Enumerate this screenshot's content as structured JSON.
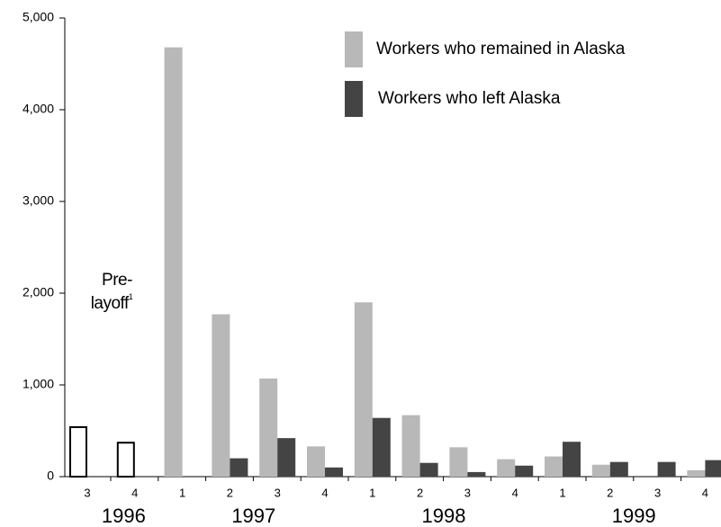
{
  "chart_data": {
    "type": "bar",
    "categories": [
      "3",
      "4",
      "1",
      "2",
      "3",
      "4",
      "1",
      "2",
      "3",
      "4",
      "1",
      "2",
      "3",
      "4"
    ],
    "group_labels": [
      "1996",
      "1997",
      "1998",
      "1999"
    ],
    "group_sizes": [
      2,
      4,
      4,
      4
    ],
    "series": [
      {
        "name": "Workers who remained in Alaska",
        "color": "#b8b8b8",
        "values": [
          null,
          null,
          4680,
          1770,
          1070,
          330,
          1900,
          670,
          320,
          190,
          220,
          130,
          null,
          70
        ]
      },
      {
        "name": "Workers who left Alaska",
        "color": "#444444",
        "values": [
          null,
          null,
          null,
          200,
          420,
          100,
          640,
          150,
          50,
          120,
          380,
          160,
          160,
          180
        ]
      },
      {
        "name": "Pre-layoff",
        "color": "#ffffff",
        "footnote": "1",
        "values": [
          540,
          370,
          null,
          null,
          null,
          null,
          null,
          null,
          null,
          null,
          null,
          null,
          null,
          null
        ]
      }
    ],
    "ylim": [
      0,
      5000
    ],
    "yticks": [
      0,
      {
        "value": 1000,
        "label": "1,000"
      },
      {
        "value": 2000,
        "label": "2,000"
      },
      {
        "value": 3000,
        "label": "3,000"
      },
      {
        "value": 4000,
        "label": "4,000"
      },
      {
        "value": 5000,
        "label": "5,000"
      }
    ],
    "grid": false
  }
}
